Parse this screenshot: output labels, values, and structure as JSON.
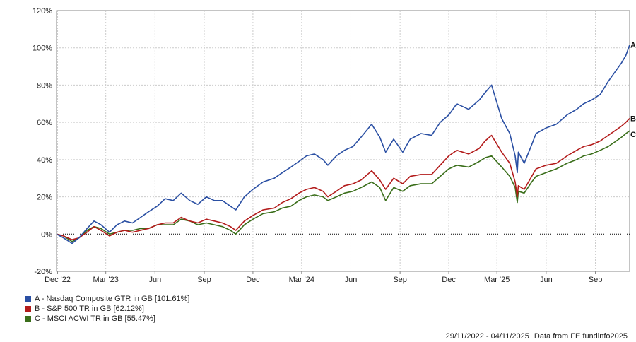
{
  "chart_data": {
    "type": "line",
    "x_range": [
      "2022-11-29",
      "2025-11-04"
    ],
    "ylim": [
      -20,
      120
    ],
    "y_ticks": [
      -20,
      0,
      20,
      40,
      60,
      80,
      100,
      120
    ],
    "y_tick_labels": [
      "-20%",
      "0%",
      "20%",
      "40%",
      "60%",
      "80%",
      "100%",
      "120%"
    ],
    "x_ticks": [
      {
        "date": "2022-12-01",
        "label": "Dec '22"
      },
      {
        "date": "2023-03-01",
        "label": "Mar '23"
      },
      {
        "date": "2023-06-01",
        "label": "Jun"
      },
      {
        "date": "2023-09-01",
        "label": "Sep"
      },
      {
        "date": "2023-12-01",
        "label": "Dec"
      },
      {
        "date": "2024-03-01",
        "label": "Mar '24"
      },
      {
        "date": "2024-06-01",
        "label": "Jun"
      },
      {
        "date": "2024-09-01",
        "label": "Sep"
      },
      {
        "date": "2024-12-01",
        "label": "Dec"
      },
      {
        "date": "2025-03-01",
        "label": "Mar '25"
      },
      {
        "date": "2025-06-01",
        "label": "Jun"
      },
      {
        "date": "2025-09-01",
        "label": "Sep"
      }
    ],
    "grid": true,
    "zero_line": "dotted",
    "legend_position": "bottom-left",
    "series": [
      {
        "name": "A - Nasdaq Composite GTR in GB [101.61%]",
        "end_label": "A",
        "color": "#2a4fa3",
        "points": [
          [
            "2022-11-29",
            0
          ],
          [
            "2022-12-12",
            -2
          ],
          [
            "2022-12-28",
            -5
          ],
          [
            "2023-01-10",
            -2
          ],
          [
            "2023-01-25",
            3
          ],
          [
            "2023-02-07",
            7
          ],
          [
            "2023-02-20",
            5
          ],
          [
            "2023-03-08",
            1
          ],
          [
            "2023-03-22",
            5
          ],
          [
            "2023-04-05",
            7
          ],
          [
            "2023-04-20",
            6
          ],
          [
            "2023-05-05",
            9
          ],
          [
            "2023-05-20",
            12
          ],
          [
            "2023-06-05",
            15
          ],
          [
            "2023-06-20",
            19
          ],
          [
            "2023-07-05",
            18
          ],
          [
            "2023-07-20",
            22
          ],
          [
            "2023-08-05",
            18
          ],
          [
            "2023-08-20",
            16
          ],
          [
            "2023-09-05",
            20
          ],
          [
            "2023-09-20",
            18
          ],
          [
            "2023-10-05",
            18
          ],
          [
            "2023-10-20",
            15
          ],
          [
            "2023-10-30",
            13
          ],
          [
            "2023-11-15",
            20
          ],
          [
            "2023-12-01",
            24
          ],
          [
            "2023-12-20",
            28
          ],
          [
            "2024-01-10",
            30
          ],
          [
            "2024-01-25",
            33
          ],
          [
            "2024-02-10",
            36
          ],
          [
            "2024-02-25",
            39
          ],
          [
            "2024-03-10",
            42
          ],
          [
            "2024-03-25",
            43
          ],
          [
            "2024-04-10",
            40
          ],
          [
            "2024-04-19",
            37
          ],
          [
            "2024-05-05",
            42
          ],
          [
            "2024-05-20",
            45
          ],
          [
            "2024-06-05",
            47
          ],
          [
            "2024-06-20",
            52
          ],
          [
            "2024-07-10",
            59
          ],
          [
            "2024-07-25",
            52
          ],
          [
            "2024-08-05",
            44
          ],
          [
            "2024-08-20",
            51
          ],
          [
            "2024-09-06",
            44
          ],
          [
            "2024-09-20",
            51
          ],
          [
            "2024-10-10",
            54
          ],
          [
            "2024-10-30",
            53
          ],
          [
            "2024-11-15",
            60
          ],
          [
            "2024-12-01",
            64
          ],
          [
            "2024-12-16",
            70
          ],
          [
            "2025-01-07",
            67
          ],
          [
            "2025-01-27",
            72
          ],
          [
            "2025-02-07",
            76
          ],
          [
            "2025-02-19",
            80
          ],
          [
            "2025-03-10",
            62
          ],
          [
            "2025-03-25",
            54
          ],
          [
            "2025-04-04",
            42
          ],
          [
            "2025-04-08",
            33
          ],
          [
            "2025-04-10",
            44
          ],
          [
            "2025-04-21",
            38
          ],
          [
            "2025-05-05",
            48
          ],
          [
            "2025-05-13",
            54
          ],
          [
            "2025-06-01",
            57
          ],
          [
            "2025-06-20",
            59
          ],
          [
            "2025-07-10",
            64
          ],
          [
            "2025-07-28",
            67
          ],
          [
            "2025-08-10",
            70
          ],
          [
            "2025-08-25",
            72
          ],
          [
            "2025-09-10",
            75
          ],
          [
            "2025-09-25",
            82
          ],
          [
            "2025-10-10",
            88
          ],
          [
            "2025-10-20",
            92
          ],
          [
            "2025-10-28",
            96
          ],
          [
            "2025-11-04",
            101.61
          ]
        ]
      },
      {
        "name": "B - S&P 500 TR in GB [62.12%]",
        "end_label": "B",
        "color": "#b31b1b",
        "points": [
          [
            "2022-11-29",
            0
          ],
          [
            "2022-12-12",
            -1
          ],
          [
            "2022-12-28",
            -3
          ],
          [
            "2023-01-10",
            -2
          ],
          [
            "2023-01-25",
            1
          ],
          [
            "2023-02-07",
            4
          ],
          [
            "2023-02-20",
            2
          ],
          [
            "2023-03-08",
            -1
          ],
          [
            "2023-03-22",
            1
          ],
          [
            "2023-04-05",
            2
          ],
          [
            "2023-04-20",
            1
          ],
          [
            "2023-05-05",
            2
          ],
          [
            "2023-05-20",
            3
          ],
          [
            "2023-06-05",
            5
          ],
          [
            "2023-06-20",
            6
          ],
          [
            "2023-07-05",
            6
          ],
          [
            "2023-07-20",
            9
          ],
          [
            "2023-08-05",
            7
          ],
          [
            "2023-08-20",
            6
          ],
          [
            "2023-09-05",
            8
          ],
          [
            "2023-09-20",
            7
          ],
          [
            "2023-10-05",
            6
          ],
          [
            "2023-10-20",
            4
          ],
          [
            "2023-10-30",
            2
          ],
          [
            "2023-11-15",
            7
          ],
          [
            "2023-12-01",
            10
          ],
          [
            "2023-12-20",
            13
          ],
          [
            "2024-01-10",
            14
          ],
          [
            "2024-01-25",
            17
          ],
          [
            "2024-02-10",
            19
          ],
          [
            "2024-02-25",
            22
          ],
          [
            "2024-03-10",
            24
          ],
          [
            "2024-03-25",
            25
          ],
          [
            "2024-04-10",
            23
          ],
          [
            "2024-04-19",
            20
          ],
          [
            "2024-05-05",
            23
          ],
          [
            "2024-05-20",
            26
          ],
          [
            "2024-06-05",
            27
          ],
          [
            "2024-06-20",
            29
          ],
          [
            "2024-07-10",
            34
          ],
          [
            "2024-07-25",
            29
          ],
          [
            "2024-08-05",
            24
          ],
          [
            "2024-08-20",
            30
          ],
          [
            "2024-09-06",
            27
          ],
          [
            "2024-09-20",
            31
          ],
          [
            "2024-10-10",
            32
          ],
          [
            "2024-10-30",
            32
          ],
          [
            "2024-11-15",
            37
          ],
          [
            "2024-12-01",
            42
          ],
          [
            "2024-12-16",
            45
          ],
          [
            "2025-01-07",
            43
          ],
          [
            "2025-01-27",
            46
          ],
          [
            "2025-02-07",
            50
          ],
          [
            "2025-02-19",
            53
          ],
          [
            "2025-03-10",
            44
          ],
          [
            "2025-03-25",
            38
          ],
          [
            "2025-04-04",
            28
          ],
          [
            "2025-04-08",
            20
          ],
          [
            "2025-04-10",
            26
          ],
          [
            "2025-04-21",
            24
          ],
          [
            "2025-05-05",
            31
          ],
          [
            "2025-05-13",
            35
          ],
          [
            "2025-06-01",
            37
          ],
          [
            "2025-06-20",
            38
          ],
          [
            "2025-07-10",
            42
          ],
          [
            "2025-07-28",
            45
          ],
          [
            "2025-08-10",
            47
          ],
          [
            "2025-08-25",
            48
          ],
          [
            "2025-09-10",
            50
          ],
          [
            "2025-09-25",
            53
          ],
          [
            "2025-10-10",
            56
          ],
          [
            "2025-10-20",
            58
          ],
          [
            "2025-10-28",
            60
          ],
          [
            "2025-11-04",
            62.12
          ]
        ]
      },
      {
        "name": "C - MSCI ACWI TR in GB [55.47%]",
        "end_label": "C",
        "color": "#3a6e1a",
        "points": [
          [
            "2022-11-29",
            0
          ],
          [
            "2022-12-12",
            -1
          ],
          [
            "2022-12-28",
            -4
          ],
          [
            "2023-01-10",
            -2
          ],
          [
            "2023-01-25",
            2
          ],
          [
            "2023-02-07",
            4
          ],
          [
            "2023-02-20",
            3
          ],
          [
            "2023-03-08",
            0
          ],
          [
            "2023-03-22",
            1
          ],
          [
            "2023-04-05",
            2
          ],
          [
            "2023-04-20",
            2
          ],
          [
            "2023-05-05",
            3
          ],
          [
            "2023-05-20",
            3
          ],
          [
            "2023-06-05",
            5
          ],
          [
            "2023-06-20",
            5
          ],
          [
            "2023-07-05",
            5
          ],
          [
            "2023-07-20",
            8
          ],
          [
            "2023-08-05",
            7
          ],
          [
            "2023-08-20",
            5
          ],
          [
            "2023-09-05",
            6
          ],
          [
            "2023-09-20",
            5
          ],
          [
            "2023-10-05",
            4
          ],
          [
            "2023-10-20",
            2
          ],
          [
            "2023-10-30",
            0
          ],
          [
            "2023-11-15",
            5
          ],
          [
            "2023-12-01",
            8
          ],
          [
            "2023-12-20",
            11
          ],
          [
            "2024-01-10",
            12
          ],
          [
            "2024-01-25",
            14
          ],
          [
            "2024-02-10",
            15
          ],
          [
            "2024-02-25",
            18
          ],
          [
            "2024-03-10",
            20
          ],
          [
            "2024-03-25",
            21
          ],
          [
            "2024-04-10",
            20
          ],
          [
            "2024-04-19",
            18
          ],
          [
            "2024-05-05",
            20
          ],
          [
            "2024-05-20",
            22
          ],
          [
            "2024-06-05",
            23
          ],
          [
            "2024-06-20",
            25
          ],
          [
            "2024-07-10",
            28
          ],
          [
            "2024-07-25",
            25
          ],
          [
            "2024-08-05",
            18
          ],
          [
            "2024-08-20",
            25
          ],
          [
            "2024-09-06",
            23
          ],
          [
            "2024-09-20",
            26
          ],
          [
            "2024-10-10",
            27
          ],
          [
            "2024-10-30",
            27
          ],
          [
            "2024-11-15",
            31
          ],
          [
            "2024-12-01",
            35
          ],
          [
            "2024-12-16",
            37
          ],
          [
            "2025-01-07",
            36
          ],
          [
            "2025-01-27",
            39
          ],
          [
            "2025-02-07",
            41
          ],
          [
            "2025-02-19",
            42
          ],
          [
            "2025-03-10",
            36
          ],
          [
            "2025-03-25",
            31
          ],
          [
            "2025-04-04",
            25
          ],
          [
            "2025-04-08",
            17
          ],
          [
            "2025-04-10",
            23
          ],
          [
            "2025-04-21",
            22
          ],
          [
            "2025-05-05",
            28
          ],
          [
            "2025-05-13",
            31
          ],
          [
            "2025-06-01",
            33
          ],
          [
            "2025-06-20",
            35
          ],
          [
            "2025-07-10",
            38
          ],
          [
            "2025-07-28",
            40
          ],
          [
            "2025-08-10",
            42
          ],
          [
            "2025-08-25",
            43
          ],
          [
            "2025-09-10",
            45
          ],
          [
            "2025-09-25",
            47
          ],
          [
            "2025-10-10",
            50
          ],
          [
            "2025-10-20",
            52
          ],
          [
            "2025-10-28",
            54
          ],
          [
            "2025-11-04",
            55.47
          ]
        ]
      }
    ]
  },
  "footer": {
    "date_range": "29/11/2022 - 04/11/2025",
    "source": "Data from FE fundinfo2025"
  }
}
